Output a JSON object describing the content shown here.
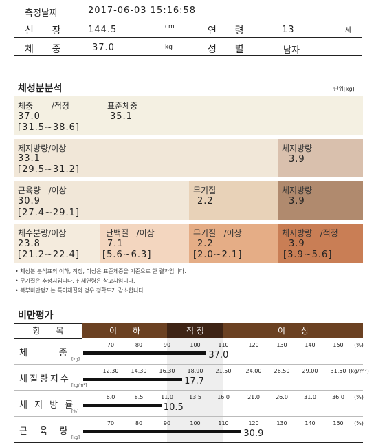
{
  "header": {
    "date_label": "측정날짜",
    "date_value": "2017-06-03 15:16:58",
    "height_label": "신      장",
    "height_value": "144.5",
    "height_unit": "cm",
    "age_label": "연      령",
    "age_value": "13",
    "age_unit": "세",
    "weight_label": "체      중",
    "weight_value": "37.0",
    "weight_unit": "kg",
    "sex_label": "성      별",
    "sex_value": "남자"
  },
  "composition": {
    "title": "체성분분석",
    "unit": "단위[kg]",
    "weight": {
      "label": "체중       /적정",
      "value": "37.0",
      "range": "[31.5~38.6]",
      "std_label": "표준체중",
      "std_value": "35.1"
    },
    "ffm": {
      "label": "제지방량/이상",
      "value": "33.1",
      "range": "[29.5~31.2]",
      "right_label": "체지방량",
      "right_value": "3.9"
    },
    "muscle": {
      "label": "근육량   /이상",
      "value": "30.9",
      "range": "[27.4~29.1]",
      "mineral_label": "무기질",
      "mineral_value": "2.2",
      "right_label": "체지방량",
      "right_value": "3.9"
    },
    "water": {
      "label": "체수분량/이상",
      "value": "23.8",
      "range": "[21.2~22.4]",
      "protein_label": "단백질   /이상",
      "protein_value": "7.1",
      "protein_range": "[5.6~6.3]",
      "mineral_label": "무기질   /이상",
      "mineral_value": "2.2",
      "mineral_range": "[2.0~2.1]",
      "fat_label": "체지방량   /적정",
      "fat_value": "3.9",
      "fat_range": "[3.9~5.6]"
    },
    "notes": [
      "• 체성분 분석표의 이하, 적정, 이상은 표준체중을 기준으로 한 결과입니다.",
      "• 무기질은 추정치입니다.   신체연령은 참고치입니다.",
      "• 복부비만평가는 특이체질의 경우 정확도가 감소합니다."
    ]
  },
  "obesity": {
    "title": "비만평가",
    "col_item": "항      목",
    "col_low": "이      하",
    "col_normal": "적 정",
    "col_high": "이      상",
    "rows": [
      {
        "label": "체      중",
        "unit": "[kg]",
        "ticks": [
          "70",
          "80",
          "90",
          "100",
          "110",
          "120",
          "130",
          "140",
          "150"
        ],
        "tick_unit": "(%)",
        "value": "37.0",
        "bar_percent": 104
      },
      {
        "label": "체질량지수",
        "unit": "[kg/m²]",
        "ticks": [
          "12.30",
          "14.30",
          "16.30",
          "18.90",
          "21.50",
          "24.00",
          "26.50",
          "29.00",
          "31.50"
        ],
        "tick_unit": "(kg/m²)",
        "value": "17.7",
        "bar_percent": 17.7
      },
      {
        "label": "체 지 방 률",
        "unit": "[%]",
        "ticks": [
          "6.0",
          "8.5",
          "11.0",
          "13.5",
          "16.0",
          "21.0",
          "26.0",
          "31.0",
          "36.0"
        ],
        "tick_unit": "(%)",
        "value": "10.5",
        "bar_percent": 10.5
      },
      {
        "label": "근  육  량",
        "unit": "[kg]",
        "ticks": [
          "70",
          "80",
          "90",
          "100",
          "110",
          "120",
          "130",
          "140",
          "150"
        ],
        "tick_unit": "(%)",
        "value": "30.9",
        "bar_percent": 116
      }
    ]
  },
  "colors": {
    "beige_light": "#f4f0e2",
    "beige": "#f1e7d8",
    "tan": "#e8d2b8",
    "brown_light": "#d9c0ad",
    "brown": "#b08a6e",
    "orange": "#c97e55",
    "peach": "#f3d6bf",
    "header_brown": "#6b4122"
  }
}
